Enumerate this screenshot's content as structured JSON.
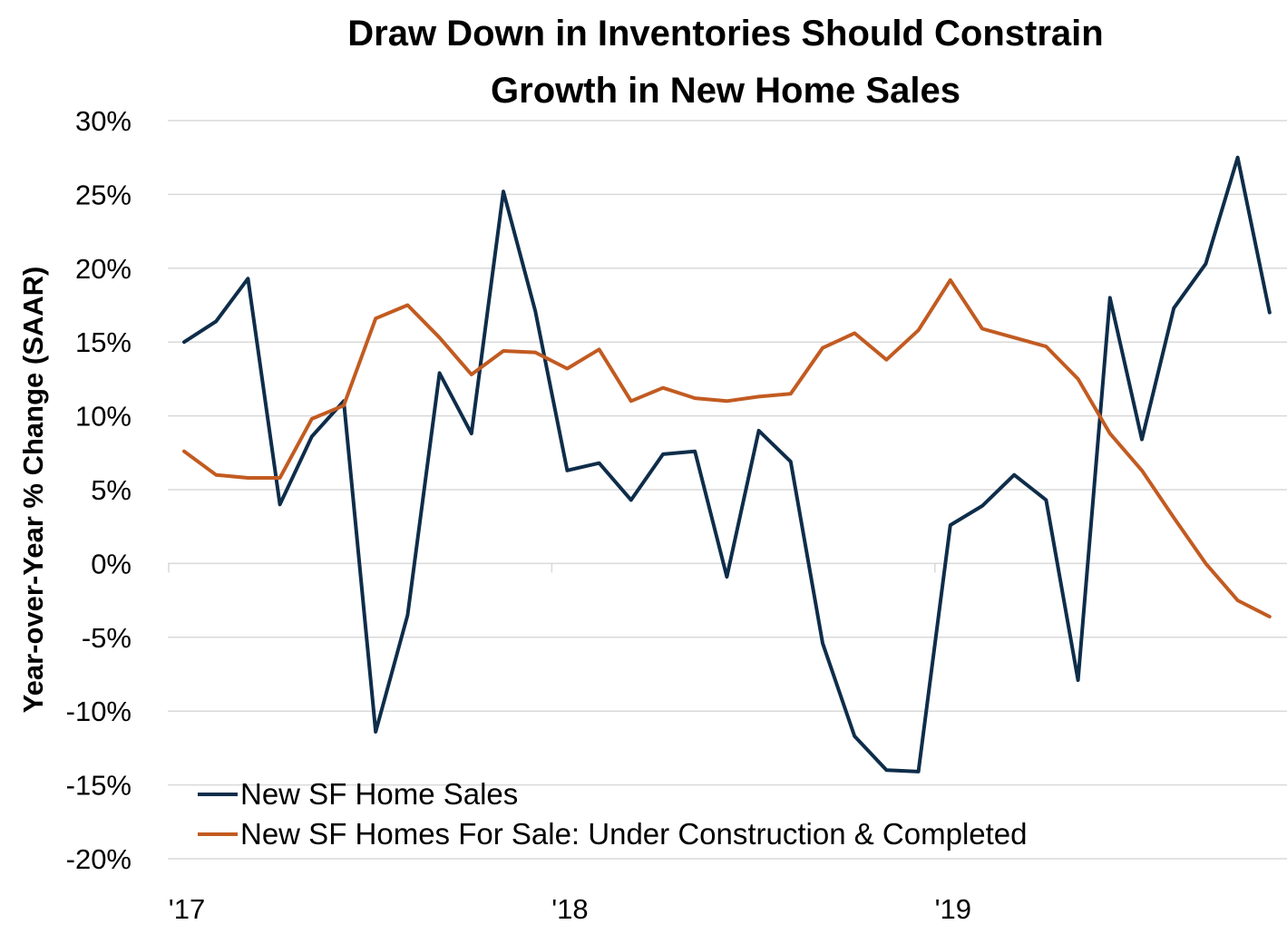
{
  "chart_data": {
    "type": "line",
    "title": [
      "Draw Down in Inventories Should Constrain",
      "Growth in New Home Sales"
    ],
    "xlabel": "",
    "ylabel": "Year-over-Year % Change (SAAR)",
    "ylim": [
      -20,
      30
    ],
    "yticks": [
      30,
      25,
      20,
      15,
      10,
      5,
      0,
      -5,
      -10,
      -15,
      -20
    ],
    "ytick_labels": [
      "30%",
      "25%",
      "20%",
      "15%",
      "10%",
      "5%",
      "0%",
      "-5%",
      "-10%",
      "-15%",
      "-20%"
    ],
    "xticks": [
      0,
      12,
      24
    ],
    "xtick_labels": [
      "'17",
      "'18",
      "'19"
    ],
    "x": [
      0,
      1,
      2,
      3,
      4,
      5,
      6,
      7,
      8,
      9,
      10,
      11,
      12,
      13,
      14,
      15,
      16,
      17,
      18,
      19,
      20,
      21,
      22,
      23,
      24,
      25,
      26,
      27,
      28,
      29,
      30,
      31,
      32,
      33,
      34
    ],
    "grid": true,
    "legend": "bottom-left",
    "series": [
      {
        "name": "New SF Home Sales",
        "color": "#0e2d4a",
        "values": [
          15.0,
          16.4,
          19.3,
          4.0,
          8.6,
          11.0,
          -11.4,
          -3.5,
          12.9,
          8.8,
          25.2,
          17.1,
          6.3,
          6.8,
          4.3,
          7.4,
          7.6,
          -0.9,
          9.0,
          6.9,
          -5.4,
          -11.7,
          -14.0,
          -14.1,
          2.6,
          3.9,
          6.0,
          4.3,
          -7.9,
          18.0,
          8.4,
          17.3,
          20.3,
          27.5,
          17.0
        ]
      },
      {
        "name": "New SF Homes For Sale: Under Construction & Completed",
        "color": "#c25b21",
        "values": [
          7.6,
          6.0,
          5.8,
          5.8,
          9.8,
          10.7,
          16.6,
          17.5,
          15.3,
          12.8,
          14.4,
          14.3,
          13.2,
          14.5,
          11.0,
          11.9,
          11.2,
          11.0,
          11.3,
          11.5,
          14.6,
          15.6,
          13.8,
          15.8,
          19.2,
          15.9,
          15.3,
          14.7,
          12.5,
          8.8,
          6.3,
          3.1,
          0.0,
          -2.5,
          -3.6
        ]
      }
    ]
  }
}
